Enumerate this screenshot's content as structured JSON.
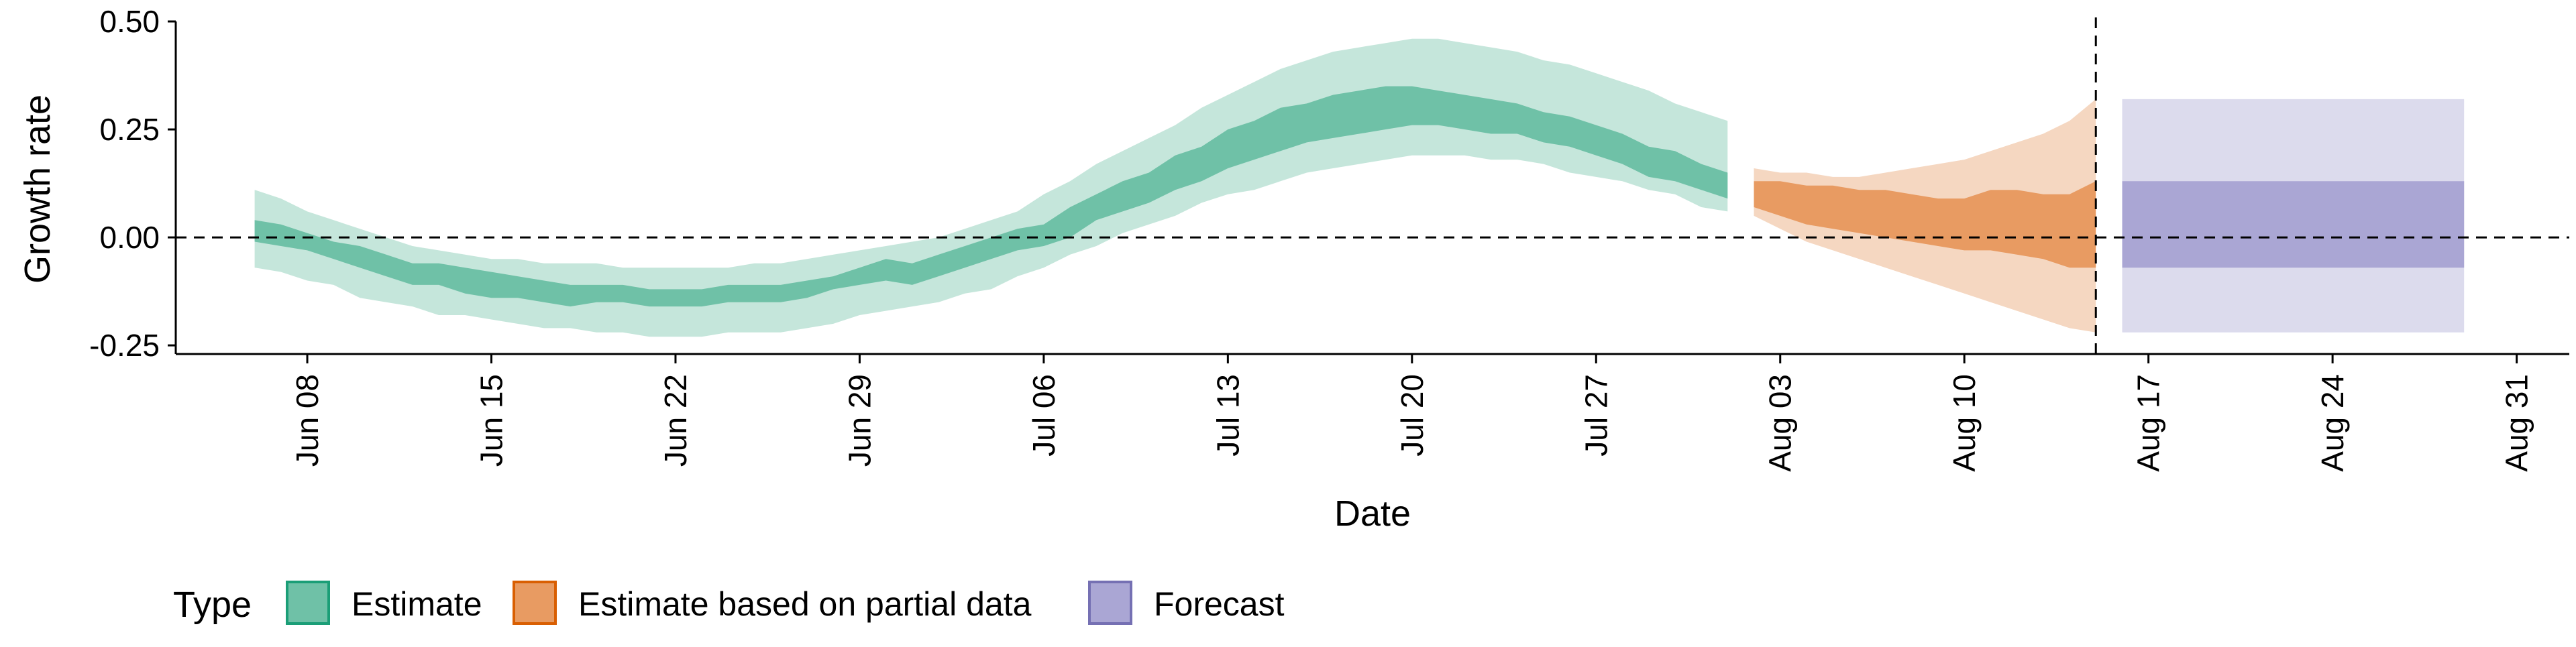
{
  "chart_data": {
    "type": "area",
    "xlabel": "Date",
    "ylabel": "Growth rate",
    "x_range": [
      "2020-06-03",
      "2020-09-02"
    ],
    "ylim": [
      -0.27,
      0.5
    ],
    "y_ticks": [
      {
        "value": 0.5,
        "label": "0.50"
      },
      {
        "value": 0.25,
        "label": "0.25"
      },
      {
        "value": 0.0,
        "label": "0.00"
      },
      {
        "value": -0.25,
        "label": "-0.25"
      }
    ],
    "x_ticks": [
      {
        "date": "2020-06-08",
        "label": "Jun 08"
      },
      {
        "date": "2020-06-15",
        "label": "Jun 15"
      },
      {
        "date": "2020-06-22",
        "label": "Jun 22"
      },
      {
        "date": "2020-06-29",
        "label": "Jun 29"
      },
      {
        "date": "2020-07-06",
        "label": "Jul 06"
      },
      {
        "date": "2020-07-13",
        "label": "Jul 13"
      },
      {
        "date": "2020-07-20",
        "label": "Jul 20"
      },
      {
        "date": "2020-07-27",
        "label": "Jul 27"
      },
      {
        "date": "2020-08-03",
        "label": "Aug 03"
      },
      {
        "date": "2020-08-10",
        "label": "Aug 10"
      },
      {
        "date": "2020-08-17",
        "label": "Aug 17"
      },
      {
        "date": "2020-08-24",
        "label": "Aug 24"
      },
      {
        "date": "2020-08-31",
        "label": "Aug 31"
      }
    ],
    "grid": false,
    "reference_lines": [
      {
        "axis": "y",
        "value": 0.0,
        "style": "dashed"
      },
      {
        "axis": "x",
        "date": "2020-08-15",
        "style": "dashed"
      }
    ],
    "legend": {
      "position": "bottom-left",
      "title": "Type",
      "entries": [
        {
          "label": "Estimate",
          "fill": "#6fc1a7",
          "stroke": "#1b9e77"
        },
        {
          "label": "Estimate based on partial data",
          "fill": "#e89b62",
          "stroke": "#d95f02"
        },
        {
          "label": "Forecast",
          "fill": "#aaa6d4",
          "stroke": "#7570b3"
        }
      ]
    },
    "series": [
      {
        "name": "Estimate",
        "colors": {
          "outer": "#c5e6db",
          "inner": "#6fc1a7"
        },
        "x": [
          "2020-06-06",
          "2020-06-07",
          "2020-06-08",
          "2020-06-09",
          "2020-06-10",
          "2020-06-11",
          "2020-06-12",
          "2020-06-13",
          "2020-06-14",
          "2020-06-15",
          "2020-06-16",
          "2020-06-17",
          "2020-06-18",
          "2020-06-19",
          "2020-06-20",
          "2020-06-21",
          "2020-06-22",
          "2020-06-23",
          "2020-06-24",
          "2020-06-25",
          "2020-06-26",
          "2020-06-27",
          "2020-06-28",
          "2020-06-29",
          "2020-06-30",
          "2020-07-01",
          "2020-07-02",
          "2020-07-03",
          "2020-07-04",
          "2020-07-05",
          "2020-07-06",
          "2020-07-07",
          "2020-07-08",
          "2020-07-09",
          "2020-07-10",
          "2020-07-11",
          "2020-07-12",
          "2020-07-13",
          "2020-07-14",
          "2020-07-15",
          "2020-07-16",
          "2020-07-17",
          "2020-07-18",
          "2020-07-19",
          "2020-07-20",
          "2020-07-21",
          "2020-07-22",
          "2020-07-23",
          "2020-07-24",
          "2020-07-25",
          "2020-07-26",
          "2020-07-27",
          "2020-07-28",
          "2020-07-29",
          "2020-07-30",
          "2020-07-31",
          "2020-08-01"
        ],
        "upper90": [
          0.11,
          0.09,
          0.06,
          0.04,
          0.02,
          0.0,
          -0.02,
          -0.03,
          -0.04,
          -0.05,
          -0.05,
          -0.06,
          -0.06,
          -0.06,
          -0.07,
          -0.07,
          -0.07,
          -0.07,
          -0.07,
          -0.06,
          -0.06,
          -0.05,
          -0.04,
          -0.03,
          -0.02,
          -0.01,
          0.0,
          0.02,
          0.04,
          0.06,
          0.1,
          0.13,
          0.17,
          0.2,
          0.23,
          0.26,
          0.3,
          0.33,
          0.36,
          0.39,
          0.41,
          0.43,
          0.44,
          0.45,
          0.46,
          0.46,
          0.45,
          0.44,
          0.43,
          0.41,
          0.4,
          0.38,
          0.36,
          0.34,
          0.31,
          0.29,
          0.27
        ],
        "upper50": [
          0.04,
          0.03,
          0.01,
          -0.01,
          -0.02,
          -0.04,
          -0.06,
          -0.06,
          -0.07,
          -0.08,
          -0.09,
          -0.1,
          -0.11,
          -0.11,
          -0.11,
          -0.12,
          -0.12,
          -0.12,
          -0.11,
          -0.11,
          -0.11,
          -0.1,
          -0.09,
          -0.07,
          -0.05,
          -0.06,
          -0.04,
          -0.02,
          0.0,
          0.02,
          0.03,
          0.07,
          0.1,
          0.13,
          0.15,
          0.19,
          0.21,
          0.25,
          0.27,
          0.3,
          0.31,
          0.33,
          0.34,
          0.35,
          0.35,
          0.34,
          0.33,
          0.32,
          0.31,
          0.29,
          0.28,
          0.26,
          0.24,
          0.21,
          0.2,
          0.17,
          0.15
        ],
        "lower50": [
          -0.01,
          -0.02,
          -0.03,
          -0.05,
          -0.07,
          -0.09,
          -0.11,
          -0.11,
          -0.13,
          -0.14,
          -0.14,
          -0.15,
          -0.16,
          -0.15,
          -0.15,
          -0.16,
          -0.16,
          -0.16,
          -0.15,
          -0.15,
          -0.15,
          -0.14,
          -0.12,
          -0.11,
          -0.1,
          -0.11,
          -0.09,
          -0.07,
          -0.05,
          -0.03,
          -0.02,
          0.0,
          0.04,
          0.06,
          0.08,
          0.11,
          0.13,
          0.16,
          0.18,
          0.2,
          0.22,
          0.23,
          0.24,
          0.25,
          0.26,
          0.26,
          0.25,
          0.24,
          0.24,
          0.22,
          0.21,
          0.19,
          0.17,
          0.14,
          0.13,
          0.11,
          0.09
        ],
        "lower90": [
          -0.07,
          -0.08,
          -0.1,
          -0.11,
          -0.14,
          -0.15,
          -0.16,
          -0.18,
          -0.18,
          -0.19,
          -0.2,
          -0.21,
          -0.21,
          -0.22,
          -0.22,
          -0.23,
          -0.23,
          -0.23,
          -0.22,
          -0.22,
          -0.22,
          -0.21,
          -0.2,
          -0.18,
          -0.17,
          -0.16,
          -0.15,
          -0.13,
          -0.12,
          -0.09,
          -0.07,
          -0.04,
          -0.02,
          0.01,
          0.03,
          0.05,
          0.08,
          0.1,
          0.11,
          0.13,
          0.15,
          0.16,
          0.17,
          0.18,
          0.19,
          0.19,
          0.19,
          0.18,
          0.18,
          0.17,
          0.15,
          0.14,
          0.13,
          0.11,
          0.1,
          0.07,
          0.06
        ]
      },
      {
        "name": "Estimate based on partial data",
        "colors": {
          "outer": "#f5d7c1",
          "inner": "#e89b62"
        },
        "x": [
          "2020-08-02",
          "2020-08-03",
          "2020-08-04",
          "2020-08-05",
          "2020-08-06",
          "2020-08-07",
          "2020-08-08",
          "2020-08-09",
          "2020-08-10",
          "2020-08-11",
          "2020-08-12",
          "2020-08-13",
          "2020-08-14",
          "2020-08-15"
        ],
        "upper90": [
          0.16,
          0.15,
          0.15,
          0.14,
          0.14,
          0.15,
          0.16,
          0.17,
          0.18,
          0.2,
          0.22,
          0.24,
          0.27,
          0.32
        ],
        "upper50": [
          0.13,
          0.13,
          0.12,
          0.12,
          0.11,
          0.11,
          0.1,
          0.09,
          0.09,
          0.11,
          0.11,
          0.1,
          0.1,
          0.13
        ],
        "lower50": [
          0.07,
          0.05,
          0.03,
          0.02,
          0.01,
          0.0,
          -0.01,
          -0.02,
          -0.03,
          -0.03,
          -0.04,
          -0.05,
          -0.07,
          -0.07
        ],
        "lower90": [
          0.05,
          0.02,
          -0.01,
          -0.03,
          -0.05,
          -0.07,
          -0.09,
          -0.11,
          -0.13,
          -0.15,
          -0.17,
          -0.19,
          -0.21,
          -0.22
        ]
      },
      {
        "name": "Forecast",
        "colors": {
          "outer": "#dcdbed",
          "inner": "#aaa6d4"
        },
        "x": [
          "2020-08-16",
          "2020-08-29"
        ],
        "upper90": [
          0.32,
          0.32
        ],
        "upper50": [
          0.13,
          0.13
        ],
        "lower50": [
          -0.07,
          -0.07
        ],
        "lower90": [
          -0.22,
          -0.22
        ]
      }
    ]
  }
}
